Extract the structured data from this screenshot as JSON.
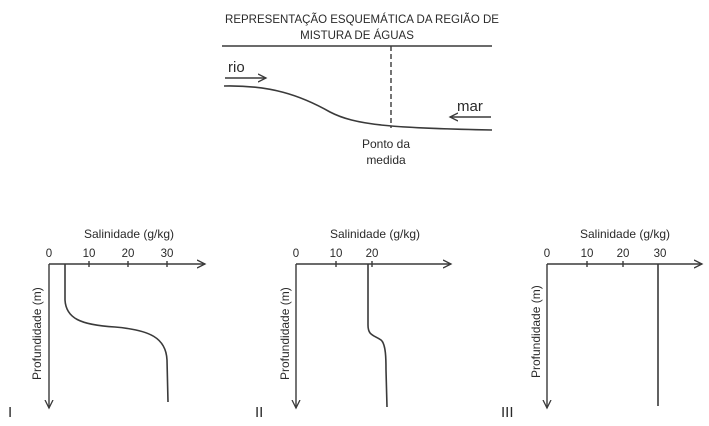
{
  "schematic": {
    "title_line1": "REPRESENTAÇÃO ESQUEMÁTICA DA REGIÃO DE",
    "title_line2": "MISTURA DE ÁGUAS",
    "river_label": "rio",
    "sea_label": "mar",
    "point_label_line1": "Ponto da",
    "point_label_line2": "medida"
  },
  "graphs": [
    {
      "roman": "I",
      "x_axis_label": "Salinidade (g/kg)",
      "y_axis_label": "Profundidade (m)",
      "ticks": [
        "0",
        "10",
        "20",
        "30"
      ],
      "profile": "halocline from about 4 g/kg near the surface to about 31 g/kg at depth"
    },
    {
      "roman": "II",
      "x_axis_label": "Salinidade (g/kg)",
      "y_axis_label": "Profundidade (m)",
      "ticks": [
        "0",
        "10",
        "20"
      ],
      "profile": "about 18 g/kg near the surface rising to about 23 g/kg at depth"
    },
    {
      "roman": "III",
      "x_axis_label": "Salinidade (g/kg)",
      "y_axis_label": "Profundidade (m)",
      "ticks": [
        "0",
        "10",
        "20",
        "30"
      ],
      "profile": "constant about 29 g/kg at all depths"
    }
  ]
}
